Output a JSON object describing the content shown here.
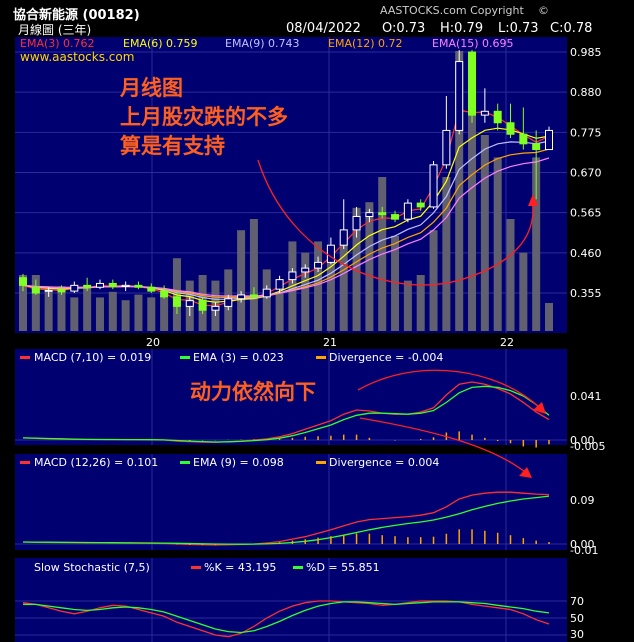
{
  "header": {
    "stock_name": "協合新能源 (00182)",
    "chart_period": "月線圖 (三年)",
    "copyright": "AASTOCKS.com Copyright",
    "date": "08/04/2022",
    "open": "O:0.73",
    "high": "H:0.79",
    "low": "L:0.73",
    "close": "C:0.78",
    "website": "www.aastocks.com"
  },
  "chart_data": [
    {
      "type": "candlestick",
      "panel": "price",
      "legend": [
        {
          "label": "EMA(3) 0.762",
          "color": "#ff3030"
        },
        {
          "label": "EMA(6) 0.759",
          "color": "#ffff00"
        },
        {
          "label": "EMA(9) 0.743",
          "color": "#c0c0ff"
        },
        {
          "label": "EMA(12) 0.72",
          "color": "#ffa500"
        },
        {
          "label": "EMA(15) 0.695",
          "color": "#ff80ff"
        }
      ],
      "y_ticks": [
        "0.985",
        "0.880",
        "0.775",
        "0.670",
        "0.565",
        "0.460",
        "0.355"
      ],
      "ylim": [
        0.27,
        1.0
      ],
      "x_ticks": [
        "20",
        "21",
        "22"
      ],
      "candles": [
        {
          "o": 0.395,
          "h": 0.405,
          "l": 0.36,
          "c": 0.375
        },
        {
          "o": 0.37,
          "h": 0.39,
          "l": 0.35,
          "c": 0.355
        },
        {
          "o": 0.36,
          "h": 0.37,
          "l": 0.345,
          "c": 0.362
        },
        {
          "o": 0.362,
          "h": 0.375,
          "l": 0.35,
          "c": 0.358
        },
        {
          "o": 0.36,
          "h": 0.385,
          "l": 0.355,
          "c": 0.375
        },
        {
          "o": 0.375,
          "h": 0.395,
          "l": 0.36,
          "c": 0.37
        },
        {
          "o": 0.37,
          "h": 0.39,
          "l": 0.365,
          "c": 0.38
        },
        {
          "o": 0.38,
          "h": 0.39,
          "l": 0.365,
          "c": 0.372
        },
        {
          "o": 0.372,
          "h": 0.385,
          "l": 0.36,
          "c": 0.375
        },
        {
          "o": 0.375,
          "h": 0.385,
          "l": 0.365,
          "c": 0.37
        },
        {
          "o": 0.37,
          "h": 0.38,
          "l": 0.355,
          "c": 0.36
        },
        {
          "o": 0.36,
          "h": 0.375,
          "l": 0.34,
          "c": 0.345
        },
        {
          "o": 0.345,
          "h": 0.36,
          "l": 0.3,
          "c": 0.32
        },
        {
          "o": 0.32,
          "h": 0.345,
          "l": 0.295,
          "c": 0.335
        },
        {
          "o": 0.335,
          "h": 0.345,
          "l": 0.3,
          "c": 0.31
        },
        {
          "o": 0.31,
          "h": 0.33,
          "l": 0.295,
          "c": 0.32
        },
        {
          "o": 0.32,
          "h": 0.35,
          "l": 0.31,
          "c": 0.34
        },
        {
          "o": 0.34,
          "h": 0.36,
          "l": 0.33,
          "c": 0.35
        },
        {
          "o": 0.35,
          "h": 0.37,
          "l": 0.34,
          "c": 0.345
        },
        {
          "o": 0.345,
          "h": 0.375,
          "l": 0.34,
          "c": 0.365
        },
        {
          "o": 0.365,
          "h": 0.4,
          "l": 0.355,
          "c": 0.39
        },
        {
          "o": 0.39,
          "h": 0.42,
          "l": 0.38,
          "c": 0.41
        },
        {
          "o": 0.41,
          "h": 0.43,
          "l": 0.395,
          "c": 0.42
        },
        {
          "o": 0.42,
          "h": 0.45,
          "l": 0.41,
          "c": 0.435
        },
        {
          "o": 0.435,
          "h": 0.5,
          "l": 0.43,
          "c": 0.48
        },
        {
          "o": 0.48,
          "h": 0.6,
          "l": 0.47,
          "c": 0.52
        },
        {
          "o": 0.52,
          "h": 0.58,
          "l": 0.5,
          "c": 0.555
        },
        {
          "o": 0.555,
          "h": 0.575,
          "l": 0.54,
          "c": 0.565
        },
        {
          "o": 0.565,
          "h": 0.58,
          "l": 0.55,
          "c": 0.56
        },
        {
          "o": 0.56,
          "h": 0.57,
          "l": 0.54,
          "c": 0.548
        },
        {
          "o": 0.548,
          "h": 0.6,
          "l": 0.54,
          "c": 0.59
        },
        {
          "o": 0.59,
          "h": 0.6,
          "l": 0.57,
          "c": 0.58
        },
        {
          "o": 0.58,
          "h": 0.7,
          "l": 0.575,
          "c": 0.69
        },
        {
          "o": 0.69,
          "h": 0.87,
          "l": 0.68,
          "c": 0.78
        },
        {
          "o": 0.78,
          "h": 0.99,
          "l": 0.77,
          "c": 0.96
        },
        {
          "o": 0.985,
          "h": 0.99,
          "l": 0.8,
          "c": 0.82
        },
        {
          "o": 0.82,
          "h": 0.89,
          "l": 0.8,
          "c": 0.83
        },
        {
          "o": 0.83,
          "h": 0.85,
          "l": 0.78,
          "c": 0.8
        },
        {
          "o": 0.8,
          "h": 0.85,
          "l": 0.76,
          "c": 0.77
        },
        {
          "o": 0.77,
          "h": 0.84,
          "l": 0.73,
          "c": 0.745
        },
        {
          "o": 0.745,
          "h": 0.78,
          "l": 0.6,
          "c": 0.73
        },
        {
          "o": 0.73,
          "h": 0.79,
          "l": 0.73,
          "c": 0.78
        }
      ],
      "volume": [
        0.2,
        0.2,
        0.14,
        0.16,
        0.12,
        0.16,
        0.12,
        0.14,
        0.11,
        0.13,
        0.12,
        0.13,
        0.26,
        0.18,
        0.2,
        0.18,
        0.22,
        0.36,
        0.4,
        0.22,
        0.14,
        0.32,
        0.28,
        0.32,
        0.3,
        0.35,
        0.44,
        0.46,
        0.55,
        0.34,
        0.18,
        0.2,
        0.36,
        0.55,
        1.0,
        0.88,
        0.7,
        0.62,
        0.4,
        0.28,
        0.62,
        0.1
      ],
      "annotations": [
        "月线图",
        "上月股灾跌的不多",
        "算是有支持"
      ]
    },
    {
      "type": "line",
      "panel": "macd-fast",
      "legend": [
        {
          "label": "MACD (7,10) = 0.019",
          "color": "#ff3030"
        },
        {
          "label": "EMA (3) = 0.023",
          "color": "#30ff30"
        },
        {
          "label": "Divergence = -0.004",
          "color": "#ffa500"
        }
      ],
      "y_ticks": [
        "0.041",
        "0.00",
        "-0.005"
      ],
      "ylim": [
        -0.008,
        0.07
      ],
      "series": [
        {
          "name": "MACD (7,10)",
          "color": "#ff3030",
          "values": [
            0.002,
            0.0015,
            0.001,
            0.0008,
            0.0006,
            0.0005,
            0.0005,
            0.0004,
            0.0004,
            0.0003,
            0.0002,
            0.0,
            -0.001,
            -0.0015,
            -0.002,
            -0.0022,
            -0.0015,
            -0.001,
            0.0,
            0.001,
            0.003,
            0.006,
            0.01,
            0.014,
            0.018,
            0.024,
            0.028,
            0.027,
            0.025,
            0.024,
            0.024,
            0.026,
            0.03,
            0.042,
            0.052,
            0.054,
            0.052,
            0.048,
            0.043,
            0.035,
            0.026,
            0.019
          ]
        },
        {
          "name": "EMA (3)",
          "color": "#30ff30",
          "values": [
            0.002,
            0.0018,
            0.0014,
            0.0011,
            0.0008,
            0.0006,
            0.0005,
            0.0005,
            0.0004,
            0.0004,
            0.0003,
            0.0001,
            -0.0005,
            -0.001,
            -0.0015,
            -0.0019,
            -0.0017,
            -0.0013,
            -0.0006,
            0.0003,
            0.0017,
            0.004,
            0.007,
            0.0105,
            0.014,
            0.019,
            0.023,
            0.025,
            0.025,
            0.0245,
            0.024,
            0.025,
            0.0275,
            0.035,
            0.044,
            0.049,
            0.05,
            0.049,
            0.046,
            0.041,
            0.033,
            0.023
          ]
        },
        {
          "name": "Divergence",
          "color": "#ffa500",
          "values": [
            0,
            0,
            0,
            0,
            0,
            0,
            0,
            0,
            0,
            0,
            0,
            0,
            -0.0005,
            -0.0005,
            -0.0005,
            -0.0003,
            0.0002,
            0.0003,
            0.0006,
            0.0007,
            0.0013,
            0.002,
            0.003,
            0.0035,
            0.004,
            0.005,
            0.005,
            0.002,
            0.0,
            -0.0005,
            0.0,
            0.001,
            0.0025,
            0.007,
            0.008,
            0.005,
            0.002,
            -0.001,
            -0.003,
            -0.006,
            -0.007,
            -0.004
          ]
        }
      ],
      "annotation": "动力依然向下"
    },
    {
      "type": "line",
      "panel": "macd-slow",
      "legend": [
        {
          "label": "MACD (12,26) = 0.101",
          "color": "#ff3030"
        },
        {
          "label": "EMA (9) = 0.098",
          "color": "#30ff30"
        },
        {
          "label": "Divergence = 0.004",
          "color": "#ffa500"
        }
      ],
      "y_ticks": [
        "0.09",
        "0.00",
        "-0.01"
      ],
      "ylim": [
        -0.012,
        0.15
      ],
      "series": [
        {
          "name": "MACD (12,26)",
          "color": "#ff3030",
          "values": [
            0.004,
            0.0035,
            0.003,
            0.0028,
            0.0026,
            0.0024,
            0.0022,
            0.002,
            0.0018,
            0.0016,
            0.0014,
            0.001,
            0.0,
            -0.001,
            -0.0015,
            -0.002,
            -0.0015,
            -0.001,
            0.0,
            0.002,
            0.005,
            0.01,
            0.015,
            0.022,
            0.029,
            0.037,
            0.045,
            0.05,
            0.052,
            0.054,
            0.056,
            0.059,
            0.064,
            0.076,
            0.092,
            0.1,
            0.104,
            0.106,
            0.106,
            0.104,
            0.102,
            0.101
          ]
        },
        {
          "name": "EMA (9)",
          "color": "#30ff30",
          "values": [
            0.004,
            0.0038,
            0.0036,
            0.0034,
            0.0032,
            0.003,
            0.0028,
            0.0026,
            0.0024,
            0.0022,
            0.002,
            0.0018,
            0.0014,
            0.001,
            0.0005,
            0.0,
            -0.0003,
            -0.0004,
            -0.0003,
            0.0002,
            0.0012,
            0.003,
            0.0055,
            0.0088,
            0.013,
            0.018,
            0.0235,
            0.029,
            0.034,
            0.038,
            0.042,
            0.045,
            0.049,
            0.055,
            0.062,
            0.07,
            0.077,
            0.083,
            0.088,
            0.092,
            0.095,
            0.098
          ]
        },
        {
          "name": "Divergence",
          "color": "#ffa500",
          "values": [
            0,
            0,
            0,
            0,
            0,
            0,
            0,
            0,
            0,
            0,
            0,
            0,
            -0.001,
            -0.002,
            -0.002,
            -0.002,
            -0.001,
            -0.0006,
            0.0003,
            0.0018,
            0.0038,
            0.007,
            0.0095,
            0.013,
            0.016,
            0.019,
            0.0215,
            0.021,
            0.018,
            0.016,
            0.014,
            0.014,
            0.015,
            0.021,
            0.03,
            0.03,
            0.027,
            0.023,
            0.018,
            0.012,
            0.007,
            0.004
          ]
        }
      ]
    },
    {
      "type": "line",
      "panel": "stochastic",
      "legend": [
        {
          "label": "Slow Stochastic (7,5)",
          "color": "#ffffff"
        },
        {
          "label": "%K = 43.195",
          "color": "#ff3030"
        },
        {
          "label": "%D = 55.851",
          "color": "#30ff30"
        }
      ],
      "y_ticks": [
        "70",
        "50",
        "30"
      ],
      "ylim": [
        25,
        85
      ],
      "series": [
        {
          "name": "%K",
          "color": "#ff3030",
          "values": [
            68,
            66,
            62,
            58,
            55,
            58,
            62,
            65,
            64,
            60,
            56,
            52,
            45,
            40,
            35,
            30,
            28,
            32,
            40,
            50,
            58,
            64,
            68,
            70,
            70,
            69,
            68,
            67,
            65,
            66,
            68,
            70,
            70,
            70,
            69,
            66,
            64,
            62,
            60,
            55,
            48,
            43
          ]
        },
        {
          "name": "%D",
          "color": "#30ff30",
          "values": [
            66,
            66,
            64,
            62,
            60,
            59,
            60,
            62,
            63,
            62,
            60,
            57,
            52,
            47,
            42,
            37,
            34,
            33,
            35,
            40,
            46,
            53,
            59,
            64,
            67,
            69,
            69,
            68,
            67,
            66,
            67,
            68,
            69,
            69,
            69,
            68,
            67,
            65,
            63,
            61,
            58,
            56
          ]
        }
      ]
    }
  ]
}
